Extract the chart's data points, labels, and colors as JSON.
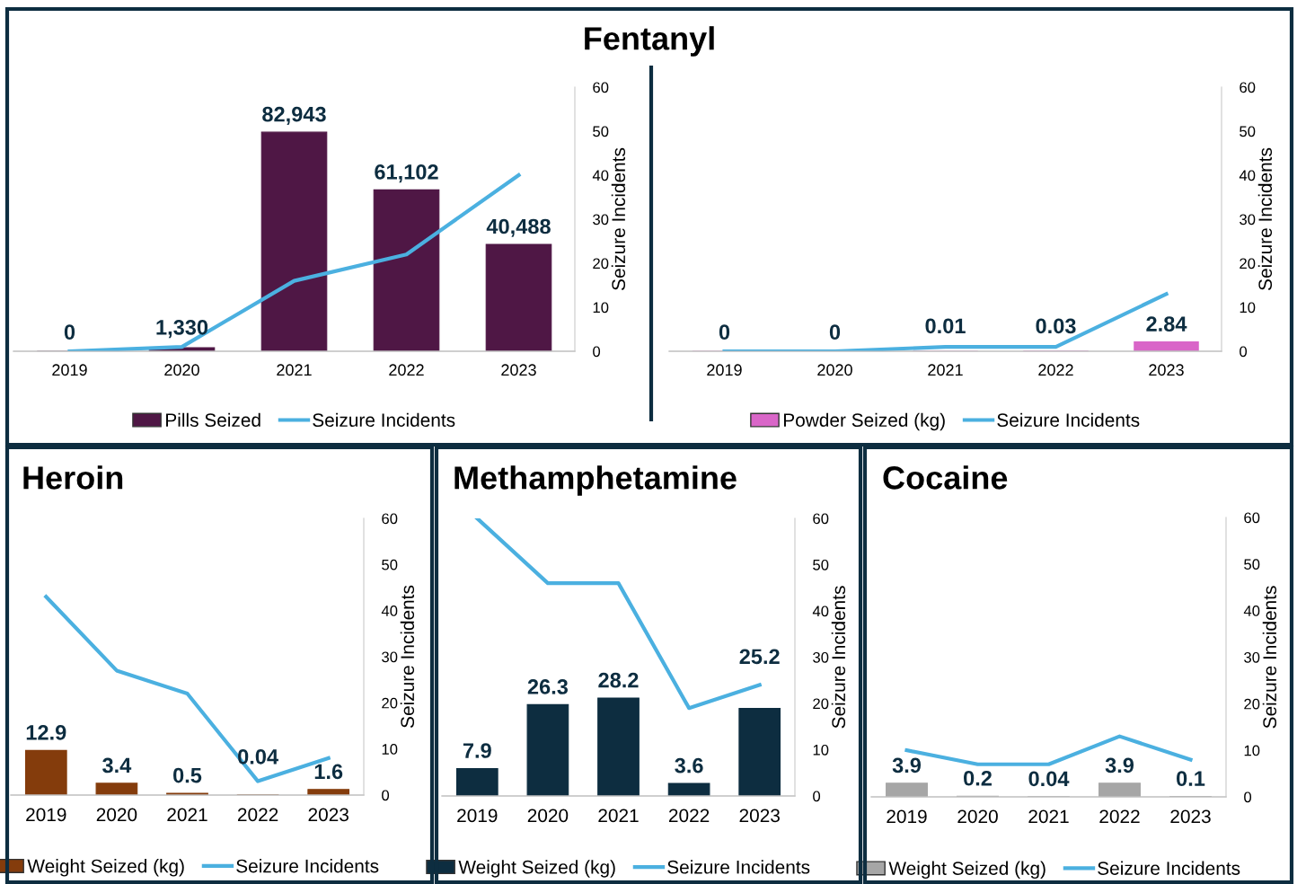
{
  "chart_data": [
    {
      "type": "bar",
      "title": "Fentanyl",
      "categories": [
        "2019",
        "2020",
        "2021",
        "2022",
        "2023"
      ],
      "ylim": [
        0,
        100000
      ],
      "y2lim": [
        0,
        60
      ],
      "y2ticks": [
        0,
        10,
        20,
        30,
        40,
        50,
        60
      ],
      "y2label": "Seizure Incidents",
      "legend": "bottom",
      "series": [
        {
          "name": "Pills Seized",
          "type": "bar",
          "color": "#4f1745",
          "values": [
            0,
            1330,
            82943,
            61102,
            40488
          ],
          "value_labels": [
            "0",
            "1,330",
            "82,943",
            "61,102",
            "40,488"
          ]
        },
        {
          "name": "Seizure Incidents",
          "type": "line",
          "axis": "y2",
          "color": "#4bb0e0",
          "values": [
            0,
            1,
            16,
            22,
            40
          ]
        }
      ]
    },
    {
      "type": "bar",
      "categories": [
        "2019",
        "2020",
        "2021",
        "2022",
        "2023"
      ],
      "ylim": [
        0,
        80
      ],
      "y2lim": [
        0,
        60
      ],
      "y2ticks": [
        0,
        10,
        20,
        30,
        40,
        50,
        60
      ],
      "y2label": "Seizure Incidents",
      "legend": "bottom",
      "series": [
        {
          "name": "Powder Seized (kg)",
          "type": "bar",
          "color": "#d966c8",
          "values": [
            0,
            0,
            0.01,
            0.03,
            2.84
          ],
          "value_labels": [
            "0",
            "0",
            "0.01",
            "0.03",
            "2.84"
          ]
        },
        {
          "name": "Seizure Incidents",
          "type": "line",
          "axis": "y2",
          "color": "#4bb0e0",
          "values": [
            0,
            0,
            1,
            1,
            13
          ]
        }
      ]
    },
    {
      "type": "bar",
      "title": "Heroin",
      "categories": [
        "2019",
        "2020",
        "2021",
        "2022",
        "2023"
      ],
      "ylim": [
        0,
        80
      ],
      "y2lim": [
        0,
        60
      ],
      "y2ticks": [
        0,
        10,
        20,
        30,
        40,
        50,
        60
      ],
      "y2label": "Seizure Incidents",
      "legend": "bottom",
      "series": [
        {
          "name": "Weight Seized (kg)",
          "type": "bar",
          "color": "#843c0c",
          "values": [
            12.9,
            3.4,
            0.5,
            0.04,
            1.6
          ],
          "value_labels": [
            "12.9",
            "3.4",
            "0.5",
            "0.04",
            "1.6"
          ]
        },
        {
          "name": "Seizure Incidents",
          "type": "line",
          "axis": "y2",
          "color": "#4bb0e0",
          "values": [
            43,
            27,
            22,
            3,
            8
          ]
        }
      ]
    },
    {
      "type": "bar",
      "title": "Methamphetamine",
      "categories": [
        "2019",
        "2020",
        "2021",
        "2022",
        "2023"
      ],
      "ylim": [
        0,
        80
      ],
      "y2lim": [
        0,
        60
      ],
      "y2ticks": [
        0,
        10,
        20,
        30,
        40,
        50,
        60
      ],
      "y2label": "Seizure Incidents",
      "legend": "bottom",
      "series": [
        {
          "name": "Weight Seized (kg)",
          "type": "bar",
          "color": "#0d2d40",
          "values": [
            7.9,
            26.3,
            28.2,
            3.6,
            25.2
          ],
          "value_labels": [
            "7.9",
            "26.3",
            "28.2",
            "3.6",
            "25.2"
          ]
        },
        {
          "name": "Seizure Incidents",
          "type": "line",
          "axis": "y2",
          "color": "#4bb0e0",
          "values": [
            60,
            46,
            46,
            19,
            24
          ]
        }
      ]
    },
    {
      "type": "bar",
      "title": "Cocaine",
      "categories": [
        "2019",
        "2020",
        "2021",
        "2022",
        "2023"
      ],
      "ylim": [
        0,
        80
      ],
      "y2lim": [
        0,
        60
      ],
      "y2ticks": [
        0,
        10,
        20,
        30,
        40,
        50,
        60
      ],
      "y2label": "Seizure Incidents",
      "legend": "bottom",
      "series": [
        {
          "name": "Weight Seized (kg)",
          "type": "bar",
          "color": "#a6a6a6",
          "values": [
            3.9,
            0.2,
            0.04,
            3.9,
            0.1
          ],
          "value_labels": [
            "3.9",
            "0.2",
            "0.04",
            "3.9",
            "0.1"
          ]
        },
        {
          "name": "Seizure Incidents",
          "type": "line",
          "axis": "y2",
          "color": "#4bb0e0",
          "values": [
            10,
            7,
            7,
            13,
            8
          ]
        }
      ]
    }
  ]
}
